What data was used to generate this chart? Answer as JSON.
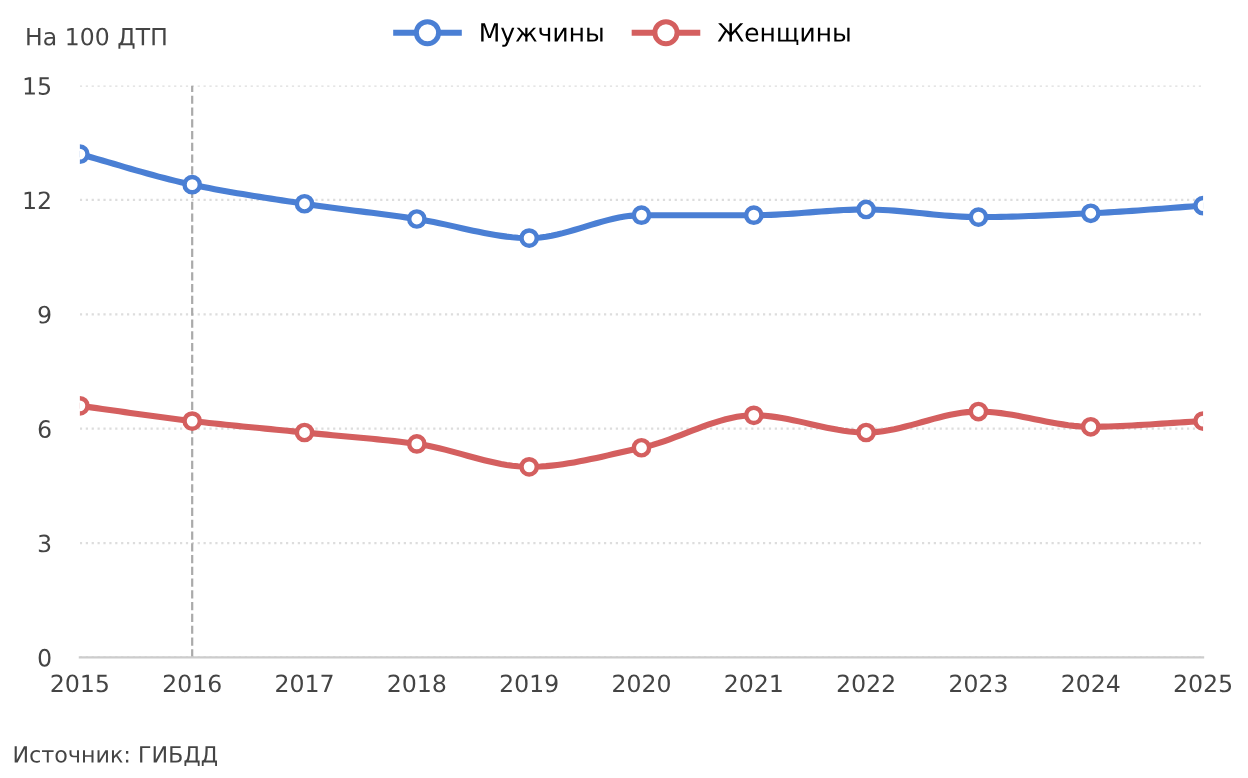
{
  "chart_data": {
    "type": "line",
    "ylabel": "На 100 ДТП",
    "x": [
      2015,
      2016,
      2017,
      2018,
      2019,
      2020,
      2021,
      2022,
      2023,
      2024,
      2025
    ],
    "series": [
      {
        "name": "Мужчины",
        "color": "#4a7fd4",
        "values": [
          13.2,
          12.4,
          11.9,
          11.5,
          11.0,
          11.6,
          11.6,
          11.75,
          11.55,
          11.65,
          11.85
        ]
      },
      {
        "name": "Женщины",
        "color": "#d45f5f",
        "values": [
          6.6,
          6.2,
          5.9,
          5.6,
          5.0,
          5.5,
          6.35,
          5.9,
          6.45,
          6.05,
          6.2
        ]
      }
    ],
    "xlim": [
      2015,
      2025
    ],
    "xticks": [
      2015,
      2016,
      2017,
      2018,
      2019,
      2020,
      2021,
      2022,
      2023,
      2024,
      2025
    ],
    "ylim": [
      0,
      15
    ],
    "yticks": [
      0,
      3,
      6,
      9,
      12,
      15
    ],
    "ref_lines": [
      {
        "axis": "x",
        "value": 2016,
        "color": "#aaaaaa",
        "line_style": "dashed"
      }
    ],
    "grid": "y",
    "legend": "top",
    "marker": "circle",
    "line_style": "solid",
    "annotations": [
      "Источник: ГИБДД"
    ]
  }
}
